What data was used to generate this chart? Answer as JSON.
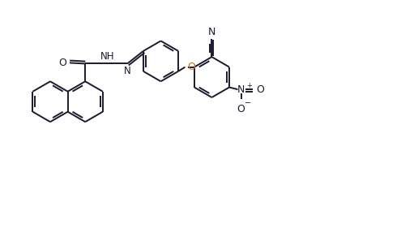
{
  "bg": "#ffffff",
  "lc": "#1a1a2e",
  "lw": 1.4,
  "dbo": 0.055,
  "figsize": [
    4.95,
    2.92
  ],
  "dpi": 100,
  "xlim": [
    0.0,
    9.5
  ],
  "ylim": [
    0.5,
    5.8
  ],
  "r": 0.48,
  "nap_orient": 30,
  "no2_color": "#1a1a2e",
  "o_color": "#c8720a"
}
